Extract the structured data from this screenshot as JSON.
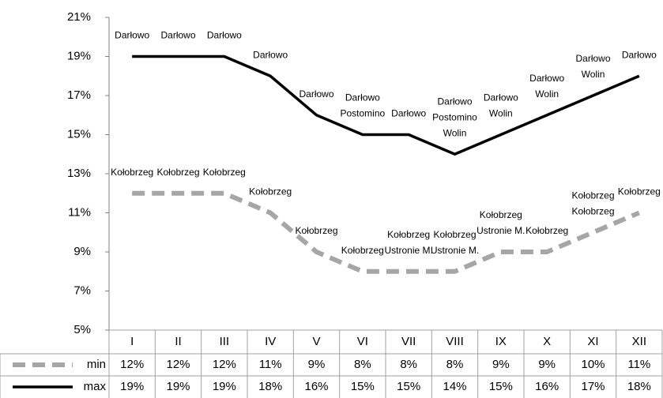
{
  "chart_data": {
    "type": "line",
    "categories": [
      "I",
      "II",
      "III",
      "IV",
      "V",
      "VI",
      "VII",
      "VIII",
      "IX",
      "X",
      "XI",
      "XII"
    ],
    "ylim": [
      5,
      21
    ],
    "yticks": [
      {
        "value": 5,
        "label": "5%"
      },
      {
        "value": 7,
        "label": "7%"
      },
      {
        "value": 9,
        "label": "9%"
      },
      {
        "value": 11,
        "label": "11%"
      },
      {
        "value": 13,
        "label": "13%"
      },
      {
        "value": 15,
        "label": "15%"
      },
      {
        "value": 17,
        "label": "17%"
      },
      {
        "value": 19,
        "label": "19%"
      },
      {
        "value": 21,
        "label": "21%"
      }
    ],
    "series": [
      {
        "name": "min",
        "color": "#a6a6a6",
        "dashed": true,
        "values": [
          12,
          12,
          12,
          11,
          9,
          8,
          8,
          8,
          9,
          9,
          10,
          11
        ],
        "value_labels": [
          "12%",
          "12%",
          "12%",
          "11%",
          "9%",
          "8%",
          "8%",
          "8%",
          "9%",
          "9%",
          "10%",
          "11%"
        ],
        "point_labels": [
          [
            "Kołobrzeg"
          ],
          [
            "Kołobrzeg"
          ],
          [
            "Kołobrzeg"
          ],
          [
            "Kołobrzeg"
          ],
          [
            "Kołobrzeg"
          ],
          [
            "Kołobrzeg"
          ],
          [
            "Kołobrzeg",
            "Ustronie M."
          ],
          [
            "Kołobrzeg",
            "Ustronie M."
          ],
          [
            "Kołobrzeg",
            "Ustronie M."
          ],
          [
            "Kołobrzeg"
          ],
          [
            "Kołobrzeg",
            "Kołobrzeg"
          ],
          [
            "Kołobrzeg"
          ]
        ]
      },
      {
        "name": "max",
        "color": "#000000",
        "dashed": false,
        "values": [
          19,
          19,
          19,
          18,
          16,
          15,
          15,
          14,
          15,
          16,
          17,
          18
        ],
        "value_labels": [
          "19%",
          "19%",
          "19%",
          "18%",
          "16%",
          "15%",
          "15%",
          "14%",
          "15%",
          "16%",
          "17%",
          "18%"
        ],
        "point_labels": [
          [
            "Darłowo"
          ],
          [
            "Darłowo"
          ],
          [
            "Darłowo"
          ],
          [
            "Darłowo"
          ],
          [
            "Darłowo"
          ],
          [
            "Darłowo",
            "Postomino"
          ],
          [
            "Darłowo"
          ],
          [
            "Darłowo",
            "Postomino",
            "Wolin"
          ],
          [
            "Darłowo",
            "Wolin"
          ],
          [
            "Darłowo",
            "Wolin"
          ],
          [
            "Darłowo",
            "Wolin"
          ],
          [
            "Darłowo"
          ]
        ]
      }
    ]
  }
}
